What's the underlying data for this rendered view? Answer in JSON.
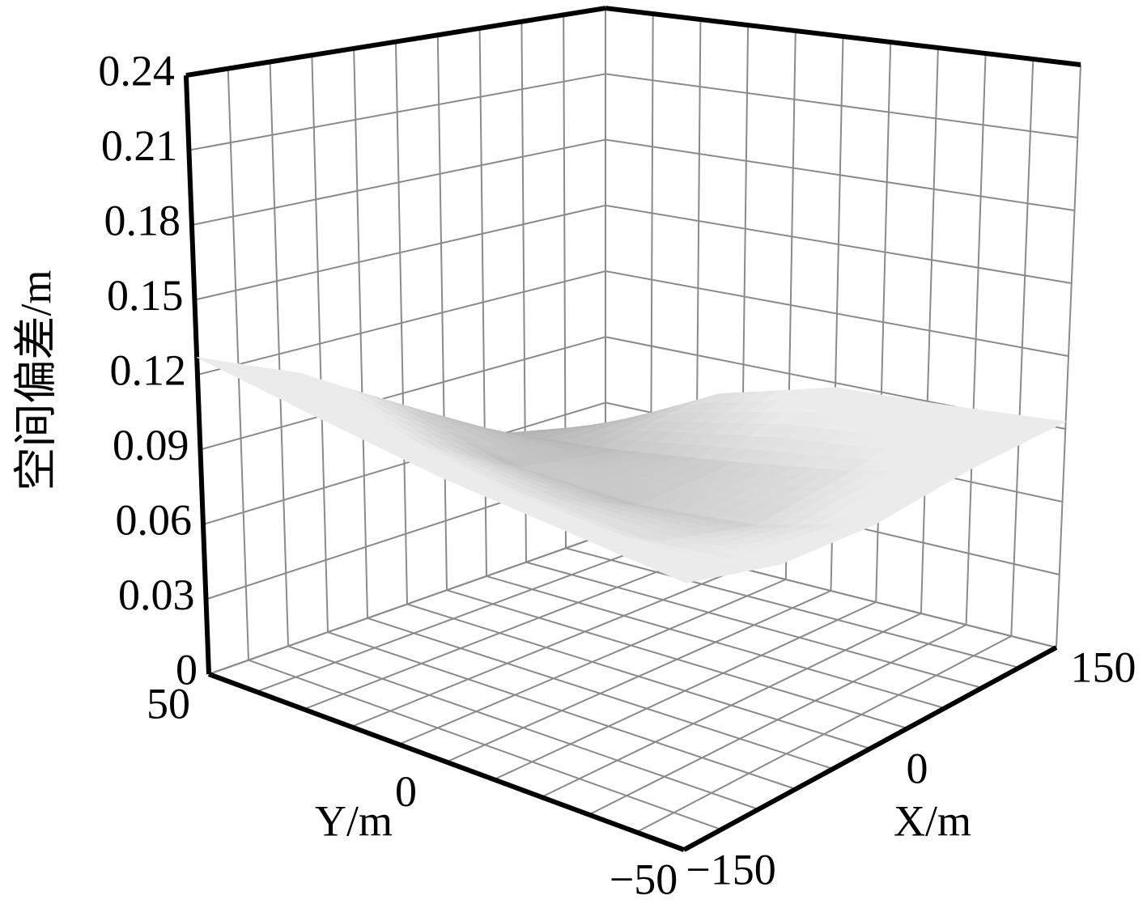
{
  "chart_data": {
    "type": "surface",
    "zlabel": "空间偏差/m",
    "xlabel": "X/m",
    "ylabel": "Y/m",
    "x": [
      -150,
      -75,
      0,
      75,
      150
    ],
    "y": [
      -50,
      -25,
      0,
      25,
      50
    ],
    "z": [
      [
        0.1,
        0.09,
        0.088,
        0.092,
        0.093
      ],
      [
        0.105,
        0.085,
        0.075,
        0.08,
        0.09
      ],
      [
        0.11,
        0.088,
        0.07,
        0.072,
        0.088
      ],
      [
        0.118,
        0.095,
        0.072,
        0.065,
        0.075
      ],
      [
        0.127,
        0.11,
        0.085,
        0.06,
        0.05
      ]
    ],
    "xlim": [
      -150,
      150
    ],
    "xticks": [
      {
        "value": -150,
        "label": "−150"
      },
      0,
      150
    ],
    "ylim": [
      -50,
      50
    ],
    "yticks": [
      {
        "value": -50,
        "label": "−50"
      },
      0,
      50
    ],
    "zlim": [
      0,
      0.24
    ],
    "zticks": [
      0,
      0.03,
      0.06,
      0.09,
      0.12,
      0.15,
      0.18,
      0.21,
      0.24
    ],
    "grid": true
  }
}
